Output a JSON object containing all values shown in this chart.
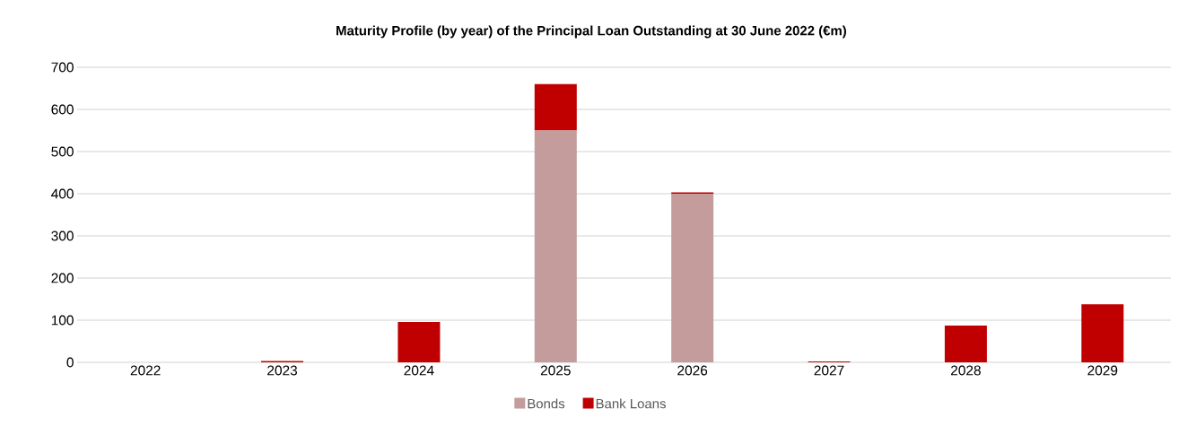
{
  "chart_data": {
    "type": "bar",
    "stacked": true,
    "title": "Maturity Profile (by year) of the Principal Loan Outstanding at 30 June 2022 (€m)",
    "categories": [
      "2022",
      "2023",
      "2024",
      "2025",
      "2026",
      "2027",
      "2028",
      "2029"
    ],
    "series": [
      {
        "name": "Bonds",
        "color": "#c49c9c",
        "values": [
          0,
          0,
          0,
          550,
          400,
          0,
          0,
          0
        ]
      },
      {
        "name": "Bank Loans",
        "color": "#c00000",
        "values": [
          0,
          3,
          96,
          110,
          3,
          2,
          87,
          138
        ]
      }
    ],
    "ylim": [
      0,
      700
    ],
    "yticks": [
      0,
      100,
      200,
      300,
      400,
      500,
      600,
      700
    ],
    "grid": "y",
    "legend": "bottom"
  }
}
